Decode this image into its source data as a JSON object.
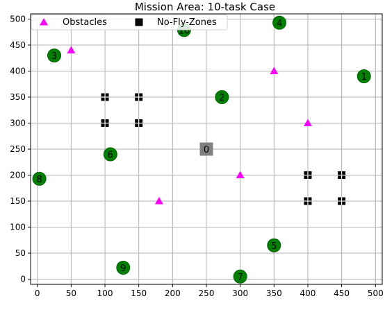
{
  "chart_data": {
    "type": "scatter",
    "title": "Mission Area: 10-task Case",
    "xlim": [
      -10,
      510
    ],
    "ylim": [
      -10,
      510
    ],
    "xticks": [
      0,
      50,
      100,
      150,
      200,
      250,
      300,
      350,
      400,
      450,
      500
    ],
    "yticks": [
      0,
      50,
      100,
      150,
      200,
      250,
      300,
      350,
      400,
      450,
      500
    ],
    "grid": true,
    "legend": {
      "placement": "top-left",
      "entries": [
        "Obstacles",
        "No-Fly-Zones"
      ]
    },
    "depot": {
      "label": "0",
      "x": 250,
      "y": 250
    },
    "tasks": [
      {
        "label": "1",
        "x": 483,
        "y": 390
      },
      {
        "label": "2",
        "x": 273,
        "y": 350
      },
      {
        "label": "3",
        "x": 25,
        "y": 430
      },
      {
        "label": "4",
        "x": 358,
        "y": 493
      },
      {
        "label": "5",
        "x": 350,
        "y": 65
      },
      {
        "label": "6",
        "x": 108,
        "y": 240
      },
      {
        "label": "7",
        "x": 300,
        "y": 5
      },
      {
        "label": "8",
        "x": 3,
        "y": 193
      },
      {
        "label": "9",
        "x": 127,
        "y": 22
      },
      {
        "label": "10",
        "x": 217,
        "y": 479
      }
    ],
    "series": [
      {
        "name": "Obstacles",
        "marker": "triangle",
        "color": "#ff00ff",
        "points": [
          [
            50,
            440
          ],
          [
            350,
            400
          ],
          [
            400,
            300
          ],
          [
            300,
            200
          ],
          [
            180,
            150
          ]
        ]
      },
      {
        "name": "No-Fly-Zones",
        "marker": "square",
        "color": "#000000",
        "points": [
          [
            100,
            350
          ],
          [
            150,
            350
          ],
          [
            100,
            300
          ],
          [
            150,
            300
          ],
          [
            400,
            200
          ],
          [
            450,
            200
          ],
          [
            400,
            150
          ],
          [
            450,
            150
          ]
        ]
      }
    ],
    "colors": {
      "task_fill": "#008000",
      "task_edge": "#006400",
      "depot_fill": "#808080",
      "grid": "#b0b0b0"
    }
  }
}
